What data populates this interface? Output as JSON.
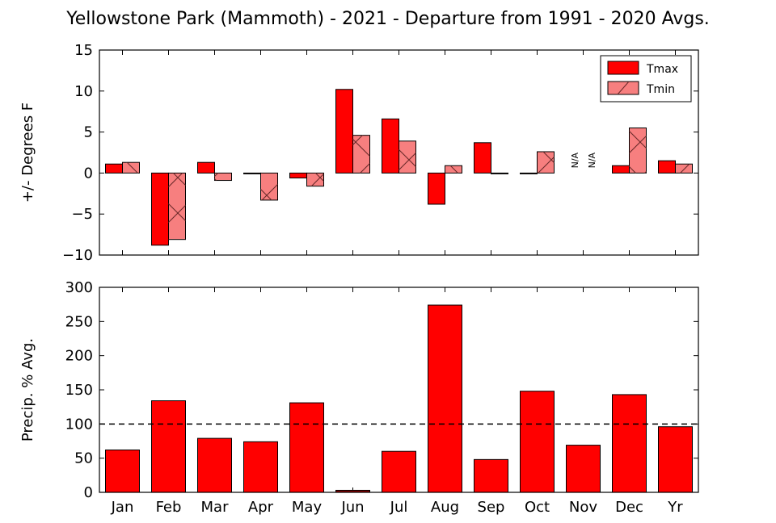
{
  "figure_title": "Yellowstone Park (Mammoth) - 2021 - Departure from 1991 - 2020 Avgs.",
  "colors": {
    "tmax": "#ff0000",
    "tmin": "#f77f7f",
    "precip": "#ff0000",
    "dark_bar": "#8b0000"
  },
  "chart_data": [
    {
      "type": "bar",
      "ylabel": "+/- Degrees F",
      "ylim": [
        -10,
        15
      ],
      "yticks": [
        -10,
        -5,
        0,
        5,
        10,
        15
      ],
      "ytick_labels": [
        "−10",
        "−5",
        "0",
        "5",
        "10",
        "15"
      ],
      "categories": [
        "Jan",
        "Feb",
        "Mar",
        "Apr",
        "May",
        "Jun",
        "Jul",
        "Aug",
        "Sep",
        "Oct",
        "Nov",
        "Dec",
        "Yr"
      ],
      "series": [
        {
          "name": "Tmax",
          "values": [
            1.1,
            -8.8,
            1.3,
            -0.1,
            -0.6,
            10.2,
            6.6,
            -3.8,
            3.7,
            -0.1,
            null,
            0.9,
            1.5
          ]
        },
        {
          "name": "Tmin",
          "values": [
            1.3,
            -8.1,
            -0.9,
            -3.3,
            -1.6,
            4.6,
            3.9,
            0.9,
            -0.1,
            2.6,
            null,
            5.5,
            1.1
          ]
        }
      ],
      "missing_label": "N/A",
      "legend": "top-right",
      "grid": false
    },
    {
      "type": "bar",
      "ylabel": "Precip. % Avg.",
      "ylim": [
        0,
        300
      ],
      "yticks": [
        0,
        50,
        100,
        150,
        200,
        250,
        300
      ],
      "ytick_labels": [
        "0",
        "50",
        "100",
        "150",
        "200",
        "250",
        "300"
      ],
      "categories": [
        "Jan",
        "Feb",
        "Mar",
        "Apr",
        "May",
        "Jun",
        "Jul",
        "Aug",
        "Sep",
        "Oct",
        "Nov",
        "Dec",
        "Yr"
      ],
      "values": [
        62,
        134,
        79,
        74,
        131,
        3,
        60,
        274,
        48,
        148,
        69,
        143,
        96
      ],
      "reference_line": 100,
      "reference_style": "dashed",
      "grid": false
    }
  ]
}
